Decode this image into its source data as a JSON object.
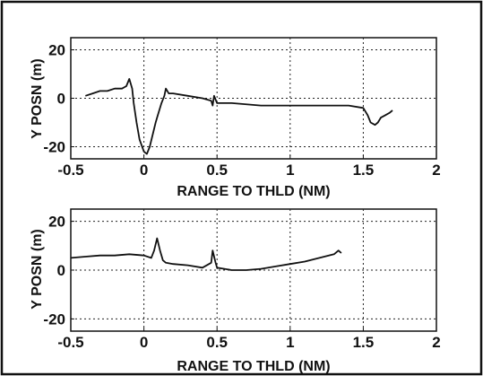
{
  "chart_data": [
    {
      "type": "line",
      "xlabel": "RANGE TO THLD (NM)",
      "ylabel": "Y POSN (m)",
      "xlim": [
        -0.5,
        2
      ],
      "ylim": [
        -25,
        25
      ],
      "xticks": [
        -0.5,
        0,
        0.5,
        1,
        1.5,
        2
      ],
      "xtick_labels": [
        "-0.5",
        "0",
        "0.5",
        "1",
        "1.5",
        "2"
      ],
      "yticks": [
        -20,
        0,
        20
      ],
      "ytick_labels": [
        "-20",
        "0",
        "20"
      ],
      "grid": true,
      "series": [
        {
          "x": [
            -0.4,
            -0.35,
            -0.3,
            -0.25,
            -0.2,
            -0.15,
            -0.12,
            -0.1,
            -0.08,
            -0.07,
            -0.05,
            -0.03,
            0.0,
            0.02,
            0.04,
            0.06,
            0.08,
            0.1,
            0.12,
            0.14,
            0.15,
            0.17,
            0.2,
            0.3,
            0.4,
            0.46,
            0.47,
            0.48,
            0.5,
            0.6,
            0.8,
            1.0,
            1.2,
            1.4,
            1.5,
            1.53,
            1.55,
            1.58,
            1.6,
            1.62,
            1.65,
            1.68,
            1.7
          ],
          "y": [
            1,
            2,
            3,
            3,
            4,
            4,
            5,
            8,
            4,
            -2,
            -10,
            -17,
            -22,
            -23,
            -20,
            -15,
            -10,
            -6,
            -2,
            1,
            4,
            2,
            2,
            1,
            0,
            -1,
            -3,
            1,
            -2,
            -2,
            -3,
            -3,
            -3,
            -3,
            -4,
            -7,
            -10,
            -11,
            -10,
            -8,
            -7,
            -6,
            -5
          ]
        }
      ]
    },
    {
      "type": "line",
      "xlabel": "RANGE TO THLD (NM)",
      "ylabel": "Y POSN (m)",
      "xlim": [
        -0.5,
        2
      ],
      "ylim": [
        -25,
        25
      ],
      "xticks": [
        -0.5,
        0,
        0.5,
        1,
        1.5,
        2
      ],
      "xtick_labels": [
        "-0.5",
        "0",
        "0.5",
        "1",
        "1.5",
        "2"
      ],
      "yticks": [
        -20,
        0,
        20
      ],
      "ytick_labels": [
        "-20",
        "0",
        "20"
      ],
      "grid": true,
      "series": [
        {
          "x": [
            -0.5,
            -0.4,
            -0.3,
            -0.2,
            -0.1,
            0.0,
            0.05,
            0.07,
            0.09,
            0.11,
            0.13,
            0.15,
            0.2,
            0.3,
            0.4,
            0.46,
            0.47,
            0.49,
            0.5,
            0.55,
            0.6,
            0.7,
            0.8,
            0.9,
            1.0,
            1.1,
            1.2,
            1.3,
            1.33,
            1.35
          ],
          "y": [
            5,
            5.5,
            6,
            6,
            6.5,
            6,
            5,
            8,
            13,
            8,
            4,
            3,
            2.5,
            2,
            1,
            3,
            8,
            3,
            1,
            0.5,
            0,
            0,
            0.5,
            1.5,
            2.5,
            3.5,
            5,
            6.5,
            8,
            7
          ]
        }
      ]
    }
  ]
}
